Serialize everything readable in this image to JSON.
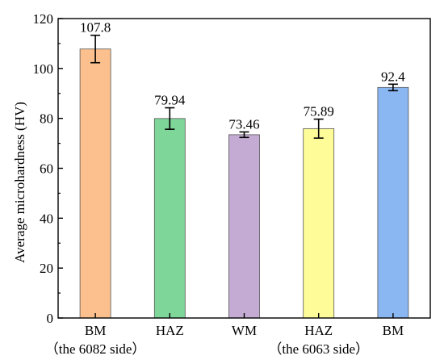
{
  "chart_data": {
    "type": "bar",
    "title": "",
    "xlabel": "",
    "ylabel": "Average microhardness (HV)",
    "ylim": [
      0,
      120
    ],
    "yticks": [
      0,
      20,
      40,
      60,
      80,
      100,
      120
    ],
    "grid": false,
    "legend": "none",
    "categories": [
      {
        "label": "BM",
        "sublabel": "（the 6082 side）"
      },
      {
        "label": "HAZ",
        "sublabel": ""
      },
      {
        "label": "WM",
        "sublabel": ""
      },
      {
        "label": "HAZ",
        "sublabel": "（the 6063 side）"
      },
      {
        "label": "BM",
        "sublabel": ""
      }
    ],
    "values": [
      107.8,
      79.94,
      73.46,
      75.89,
      92.4
    ],
    "value_labels": [
      "107.8",
      "79.94",
      "73.46",
      "75.89",
      "92.4"
    ],
    "errors": [
      5.5,
      4.3,
      1.1,
      3.8,
      1.3
    ],
    "colors": [
      "#FBC08E",
      "#7ED699",
      "#C3ABD3",
      "#FDFC98",
      "#8AB6F2"
    ]
  }
}
